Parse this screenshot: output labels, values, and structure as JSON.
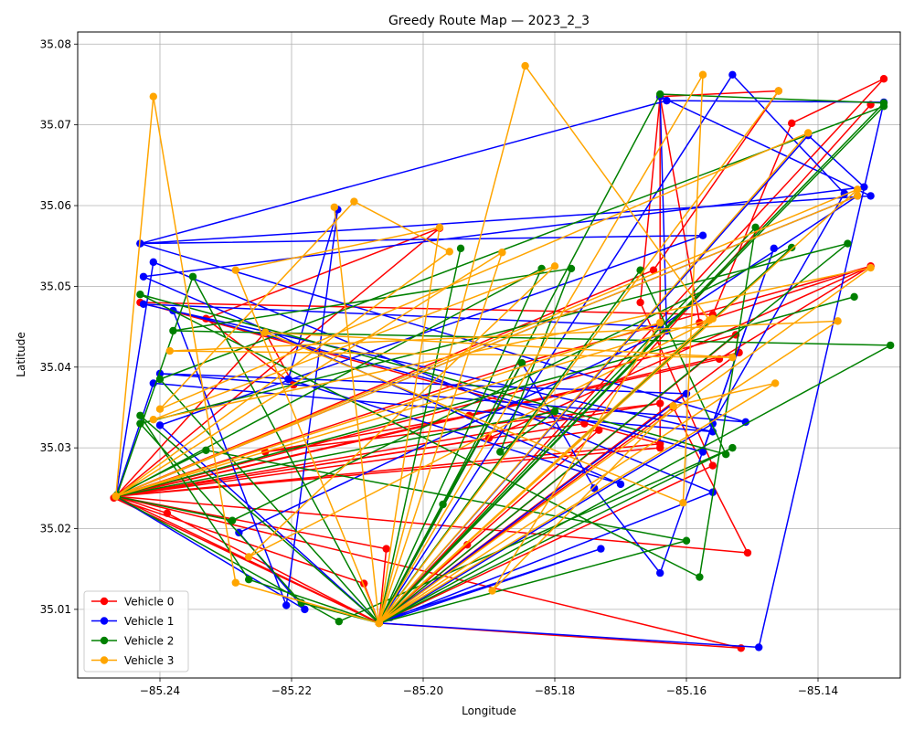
{
  "chart_data": {
    "type": "line",
    "title": "Greedy Route Map — 2023_2_3",
    "xlabel": "Longitude",
    "ylabel": "Latitude",
    "xlim": [
      -85.2525,
      -85.1275
    ],
    "ylim": [
      35.0015,
      35.0815
    ],
    "xticks": [
      -85.24,
      -85.22,
      -85.2,
      -85.18,
      -85.16,
      -85.14
    ],
    "xtick_labels": [
      "−85.24",
      "−85.22",
      "−85.20",
      "−85.18",
      "−85.16",
      "−85.14"
    ],
    "yticks": [
      35.01,
      35.02,
      35.03,
      35.04,
      35.05,
      35.06,
      35.07,
      35.08
    ],
    "ytick_labels": [
      "35.01",
      "35.02",
      "35.03",
      "35.04",
      "35.05",
      "35.06",
      "35.07",
      "35.08"
    ],
    "grid": true,
    "legend_position": "lower-left",
    "series": [
      {
        "name": "Vehicle 0",
        "color": "#ff0000",
        "points": [
          [
            -85.2467,
            35.024
          ],
          [
            -85.2389,
            35.0219
          ],
          [
            -85.2067,
            35.0083
          ],
          [
            -85.1933,
            35.018
          ],
          [
            -85.2067,
            35.0083
          ],
          [
            -85.1517,
            35.0052
          ],
          [
            -85.2467,
            35.024
          ],
          [
            -85.2067,
            35.0083
          ],
          [
            -85.209,
            35.0132
          ],
          [
            -85.247,
            35.0238
          ],
          [
            -85.2067,
            35.0083
          ],
          [
            -85.2056,
            35.0175
          ],
          [
            -85.2467,
            35.024
          ],
          [
            -85.2067,
            35.0083
          ],
          [
            -85.1733,
            35.0322
          ],
          [
            -85.2467,
            35.024
          ],
          [
            -85.2067,
            35.0083
          ],
          [
            -85.185,
            35.0405
          ],
          [
            -85.2467,
            35.024
          ],
          [
            -85.1975,
            35.0572
          ],
          [
            -85.233,
            35.046
          ],
          [
            -85.2197,
            35.0378
          ],
          [
            -85.224,
            35.0443
          ],
          [
            -85.2467,
            35.024
          ],
          [
            -85.152,
            35.0418
          ],
          [
            -85.2067,
            35.0083
          ],
          [
            -85.1525,
            35.044
          ],
          [
            -85.2467,
            35.024
          ],
          [
            -85.155,
            35.041
          ],
          [
            -85.132,
            35.0525
          ],
          [
            -85.185,
            35.0405
          ],
          [
            -85.2067,
            35.0083
          ],
          [
            -85.156,
            35.0278
          ],
          [
            -85.167,
            35.048
          ],
          [
            -85.164,
            35.0735
          ],
          [
            -85.164,
            35.03
          ],
          [
            -85.2467,
            35.024
          ],
          [
            -85.164,
            35.0355
          ],
          [
            -85.224,
            35.0295
          ],
          [
            -85.193,
            35.034
          ],
          [
            -85.2467,
            35.024
          ],
          [
            -85.164,
            35.0305
          ],
          [
            -85.243,
            35.048
          ],
          [
            -85.156,
            35.0465
          ],
          [
            -85.144,
            35.0702
          ],
          [
            -85.13,
            35.0757
          ],
          [
            -85.2067,
            35.0083
          ],
          [
            -85.162,
            35.035
          ],
          [
            -85.1507,
            35.017
          ],
          [
            -85.2467,
            35.024
          ],
          [
            -85.165,
            35.052
          ],
          [
            -85.146,
            35.0742
          ],
          [
            -85.164,
            35.0735
          ],
          [
            -85.158,
            35.0455
          ],
          [
            -85.132,
            35.0525
          ],
          [
            -85.19,
            35.0312
          ],
          [
            -85.2467,
            35.024
          ],
          [
            -85.1755,
            35.033
          ],
          [
            -85.132,
            35.0725
          ]
        ]
      },
      {
        "name": "Vehicle 1",
        "color": "#0000ff",
        "points": [
          [
            -85.2467,
            35.024
          ],
          [
            -85.241,
            35.053
          ],
          [
            -85.156,
            35.0245
          ],
          [
            -85.2067,
            35.0083
          ],
          [
            -85.149,
            35.0053
          ],
          [
            -85.13,
            35.0728
          ],
          [
            -85.163,
            35.073
          ],
          [
            -85.243,
            35.0553
          ],
          [
            -85.1575,
            35.0563
          ],
          [
            -85.24,
            35.0328
          ],
          [
            -85.2067,
            35.0083
          ],
          [
            -85.153,
            35.0762
          ],
          [
            -85.136,
            35.0615
          ],
          [
            -85.156,
            35.033
          ],
          [
            -85.205,
            35.009
          ],
          [
            -85.173,
            35.0175
          ],
          [
            -85.2067,
            35.0083
          ],
          [
            -85.185,
            35.0405
          ],
          [
            -85.174,
            35.025
          ],
          [
            -85.164,
            35.0145
          ],
          [
            -85.1467,
            35.0547
          ],
          [
            -85.1575,
            35.0295
          ],
          [
            -85.238,
            35.047
          ],
          [
            -85.2208,
            35.0105
          ],
          [
            -85.213,
            35.0595
          ],
          [
            -85.2205,
            35.0385
          ],
          [
            -85.17,
            35.0255
          ],
          [
            -85.2425,
            35.0512
          ],
          [
            -85.133,
            35.0623
          ],
          [
            -85.1415,
            35.0687
          ],
          [
            -85.2067,
            35.0083
          ],
          [
            -85.16,
            35.0367
          ],
          [
            -85.24,
            35.0392
          ],
          [
            -85.151,
            35.0332
          ],
          [
            -85.243,
            35.0553
          ],
          [
            -85.132,
            35.0612
          ],
          [
            -85.164,
            35.0735
          ],
          [
            -85.163,
            35.0445
          ],
          [
            -85.228,
            35.0195
          ],
          [
            -85.218,
            35.01
          ],
          [
            -85.2467,
            35.024
          ],
          [
            -85.134,
            35.0612
          ],
          [
            -85.164,
            35.045
          ],
          [
            -85.2425,
            35.0478
          ],
          [
            -85.156,
            35.032
          ],
          [
            -85.241,
            35.038
          ],
          [
            -85.2467,
            35.024
          ]
        ]
      },
      {
        "name": "Vehicle 2",
        "color": "#008000",
        "points": [
          [
            -85.2467,
            35.024
          ],
          [
            -85.2128,
            35.0085
          ],
          [
            -85.153,
            35.03
          ],
          [
            -85.2067,
            35.0083
          ],
          [
            -85.2265,
            35.0137
          ],
          [
            -85.243,
            35.034
          ],
          [
            -85.2067,
            35.0083
          ],
          [
            -85.167,
            35.052
          ],
          [
            -85.154,
            35.0292
          ],
          [
            -85.243,
            35.049
          ],
          [
            -85.158,
            35.014
          ],
          [
            -85.1495,
            35.0573
          ],
          [
            -85.2067,
            35.0083
          ],
          [
            -85.16,
            35.0185
          ],
          [
            -85.233,
            35.0297
          ],
          [
            -85.2465,
            35.0242
          ],
          [
            -85.235,
            35.0512
          ],
          [
            -85.2067,
            35.0083
          ],
          [
            -85.197,
            35.023
          ],
          [
            -85.185,
            35.0405
          ],
          [
            -85.2067,
            35.0083
          ],
          [
            -85.13,
            35.0727
          ],
          [
            -85.164,
            35.0738
          ],
          [
            -85.2067,
            35.0083
          ],
          [
            -85.1355,
            35.0553
          ],
          [
            -85.243,
            35.033
          ],
          [
            -85.2185,
            35.0108
          ],
          [
            -85.2067,
            35.0083
          ],
          [
            -85.1943,
            35.0547
          ],
          [
            -85.2067,
            35.0083
          ],
          [
            -85.129,
            35.0427
          ],
          [
            -85.238,
            35.0445
          ],
          [
            -85.1775,
            35.0522
          ],
          [
            -85.1883,
            35.0295
          ],
          [
            -85.18,
            35.0345
          ],
          [
            -85.2467,
            35.024
          ],
          [
            -85.1345,
            35.0487
          ],
          [
            -85.2467,
            35.024
          ],
          [
            -85.182,
            35.0522
          ],
          [
            -85.2067,
            35.0083
          ],
          [
            -85.13,
            35.0723
          ],
          [
            -85.24,
            35.0385
          ],
          [
            -85.2067,
            35.0083
          ],
          [
            -85.144,
            35.0548
          ],
          [
            -85.229,
            35.021
          ],
          [
            -85.2467,
            35.024
          ]
        ]
      },
      {
        "name": "Vehicle 3",
        "color": "#ffa500",
        "points": [
          [
            -85.2467,
            35.024
          ],
          [
            -85.241,
            35.0735
          ],
          [
            -85.2285,
            35.0133
          ],
          [
            -85.2067,
            35.0083
          ],
          [
            -85.2135,
            35.0598
          ],
          [
            -85.2067,
            35.0083
          ],
          [
            -85.1845,
            35.0773
          ],
          [
            -85.1565,
            35.0458
          ],
          [
            -85.2067,
            35.0083
          ],
          [
            -85.1575,
            35.0762
          ],
          [
            -85.2067,
            35.0083
          ],
          [
            -85.146,
            35.0742
          ],
          [
            -85.2067,
            35.0083
          ],
          [
            -85.134,
            35.062
          ],
          [
            -85.2467,
            35.024
          ],
          [
            -85.188,
            35.0542
          ],
          [
            -85.2067,
            35.0083
          ],
          [
            -85.1415,
            35.069
          ],
          [
            -85.24,
            35.0348
          ],
          [
            -85.2105,
            35.0605
          ],
          [
            -85.196,
            35.0543
          ],
          [
            -85.2467,
            35.024
          ],
          [
            -85.164,
            35.0455
          ],
          [
            -85.1895,
            35.0123
          ],
          [
            -85.162,
            35.0352
          ],
          [
            -85.1465,
            35.038
          ],
          [
            -85.2067,
            35.0083
          ],
          [
            -85.1975,
            35.0573
          ],
          [
            -85.2285,
            35.052
          ],
          [
            -85.2067,
            35.0083
          ],
          [
            -85.1575,
            35.0762
          ],
          [
            -85.1605,
            35.0232
          ],
          [
            -85.224,
            35.0443
          ],
          [
            -85.153,
            35.0412
          ],
          [
            -85.2385,
            35.042
          ],
          [
            -85.137,
            35.0457
          ],
          [
            -85.2067,
            35.0083
          ],
          [
            -85.132,
            35.0523
          ],
          [
            -85.241,
            35.0335
          ],
          [
            -85.18,
            35.0525
          ],
          [
            -85.2265,
            35.0165
          ],
          [
            -85.156,
            35.046
          ],
          [
            -85.2467,
            35.024
          ],
          [
            -85.134,
            35.0612
          ],
          [
            -85.2467,
            35.024
          ]
        ]
      }
    ]
  }
}
